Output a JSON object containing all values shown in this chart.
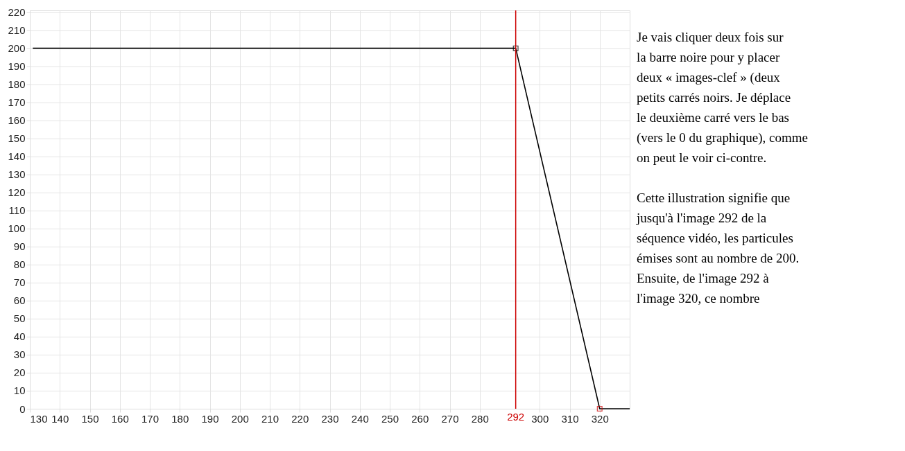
{
  "chart_data": {
    "type": "line",
    "series": [
      {
        "color": "#000000",
        "x": [
          131,
          292,
          320,
          330
        ],
        "values": [
          200,
          200,
          0,
          0
        ],
        "marker": "none"
      },
      {
        "type": "scatter",
        "color": "#000000",
        "colors": [
          "#000000",
          "#cc0000"
        ],
        "x": [
          292,
          320
        ],
        "values": [
          200,
          0
        ],
        "marker": "square"
      }
    ],
    "xlim": [
      130,
      330
    ],
    "ylim": [
      0,
      221
    ],
    "xticks": [
      130,
      140,
      150,
      160,
      170,
      180,
      190,
      200,
      210,
      220,
      230,
      240,
      250,
      260,
      270,
      280,
      300,
      310,
      320
    ],
    "yticks": [
      0,
      10,
      20,
      30,
      40,
      50,
      60,
      70,
      80,
      90,
      100,
      110,
      120,
      130,
      140,
      150,
      160,
      170,
      180,
      190,
      200,
      210,
      220
    ],
    "grid": true,
    "ref_lines": [
      {
        "axis": "x",
        "value": 292,
        "label": "292",
        "color": "#cc0000"
      }
    ],
    "annotations": [
      "Je vais cliquer deux fois sur la barre noire pour y placer deux « images-clef » (deux petits carrés noirs. Je déplace le deuxième carré vers le bas (vers le 0 du graphique), comme on peut le voir ci-contre.",
      "Cette illustration signifie que jusqu'à l'image 292 de la séquence vidéo, les particules émises sont au nombre de 200.",
      "Ensuite, de l'image 292 à l'image 320, ce nombre"
    ]
  }
}
